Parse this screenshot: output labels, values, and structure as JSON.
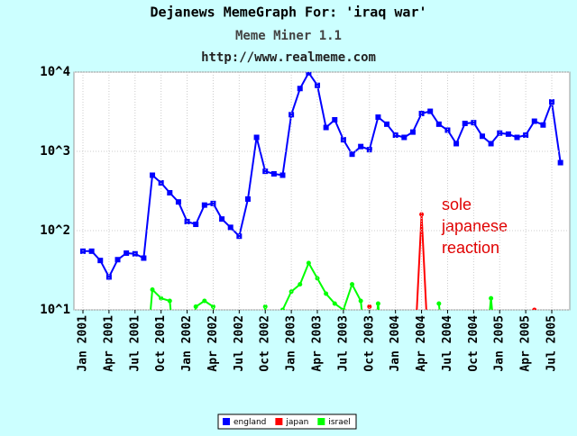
{
  "chart_data": {
    "type": "line",
    "title": "Dejanews MemeGraph For: 'iraq war'",
    "subtitle": "Meme Miner 1.1",
    "url": "http://www.realmeme.com",
    "annotation": [
      "sole",
      "japanese",
      "reaction"
    ],
    "log_scale": true,
    "grid": true,
    "legend": "bottom",
    "categories": [
      "Jan 2001",
      null,
      null,
      "Apr 2001",
      null,
      null,
      "Jul 2001",
      null,
      null,
      "Oct 2001",
      null,
      null,
      "Jan 2002",
      null,
      null,
      "Apr 2002",
      null,
      null,
      "Jul 2002",
      null,
      null,
      "Oct 2002",
      null,
      null,
      "Jan 2003",
      null,
      null,
      "Apr 2003",
      null,
      null,
      "Jul 2003",
      null,
      null,
      "Oct 2003",
      null,
      null,
      "Jan 2004",
      null,
      null,
      "Apr 2004",
      null,
      null,
      "Jul 2004",
      null,
      null,
      "Oct 2004",
      null,
      null,
      "Jan 2005",
      null,
      null,
      "Apr 2005",
      null,
      null,
      "Jul 2005",
      null
    ],
    "ylim": [
      10,
      10000
    ],
    "yticks": [
      {
        "value": 10,
        "label": "10^1"
      },
      {
        "value": 100,
        "label": "10^2"
      },
      {
        "value": 1000,
        "label": "10^3"
      },
      {
        "value": 10000,
        "label": "10^4"
      }
    ],
    "series": [
      {
        "name": "england",
        "color": "#0000ff",
        "marker": "square",
        "values": [
          55,
          55,
          42,
          26,
          43,
          52,
          51,
          45,
          500,
          400,
          300,
          230,
          130,
          120,
          210,
          220,
          140,
          110,
          85,
          250,
          1500,
          560,
          520,
          500,
          2900,
          6200,
          9800,
          6800,
          2000,
          2500,
          1400,
          920,
          1150,
          1050,
          2700,
          2200,
          1600,
          1500,
          1750,
          3000,
          3200,
          2200,
          1850,
          1250,
          2250,
          2300,
          1550,
          1250,
          1700,
          1650,
          1500,
          1600,
          2400,
          2150,
          4200,
          720
        ]
      },
      {
        "name": "japan",
        "color": "#ff0000",
        "marker": "circle",
        "values": [
          null,
          null,
          null,
          null,
          null,
          null,
          null,
          null,
          null,
          null,
          null,
          null,
          null,
          null,
          null,
          null,
          null,
          null,
          null,
          null,
          null,
          null,
          null,
          null,
          null,
          null,
          null,
          null,
          null,
          null,
          null,
          null,
          null,
          11,
          null,
          null,
          null,
          null,
          1,
          160,
          1,
          null,
          null,
          null,
          null,
          null,
          null,
          null,
          null,
          null,
          null,
          null,
          10,
          null,
          null,
          null
        ]
      },
      {
        "name": "israel",
        "color": "#00ff00",
        "marker": "circle",
        "values": [
          null,
          null,
          null,
          null,
          null,
          null,
          null,
          1,
          18,
          14,
          13,
          1,
          1,
          11,
          13,
          11,
          1,
          null,
          null,
          null,
          1,
          11,
          1,
          10,
          17,
          21,
          39,
          25,
          16,
          12,
          10,
          21,
          13,
          1,
          12,
          1,
          null,
          null,
          null,
          null,
          null,
          12,
          1,
          null,
          null,
          null,
          1,
          14,
          1,
          null,
          null,
          null,
          null,
          null,
          null,
          null
        ]
      }
    ]
  }
}
